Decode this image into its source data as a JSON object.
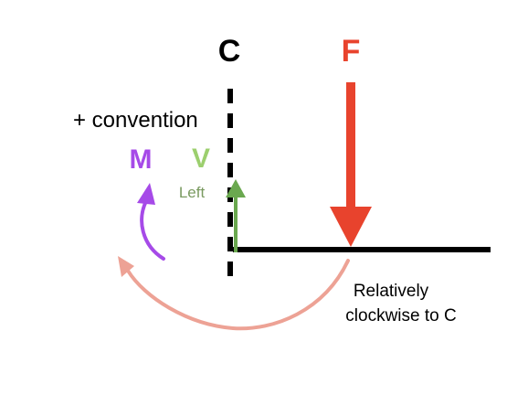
{
  "labels": {
    "section": "C",
    "force": "F",
    "convention": "+ convention",
    "moment": "M",
    "shear": "V",
    "shear_direction": "Left",
    "note_line1": "Relatively",
    "note_line2": "clockwise to C"
  },
  "colors": {
    "section": "#000000",
    "force": "#e8432d",
    "moment": "#a64ae8",
    "shear": "#9ccf6e",
    "shear_arrow": "#6aa84f",
    "shear_direction": "#7a9a60",
    "clockwise_arc": "#eda295",
    "beam": "#000000",
    "text": "#000000"
  }
}
